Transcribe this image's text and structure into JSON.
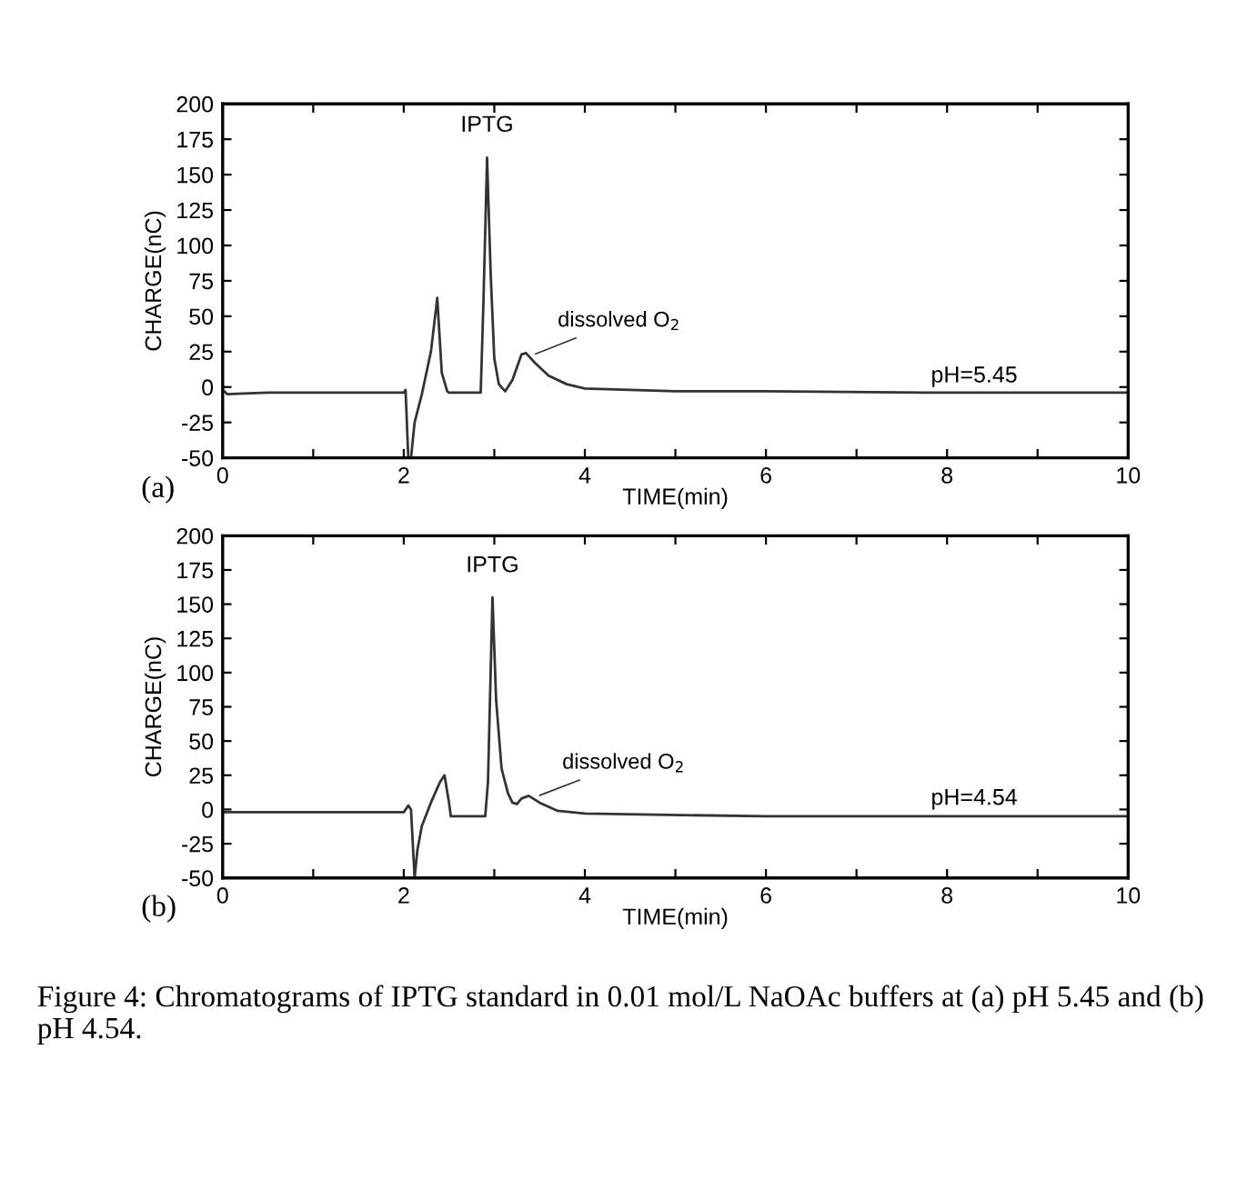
{
  "chart_data": [
    {
      "type": "line",
      "xlabel": "TIME(min)",
      "ylabel": "CHARGE(nC)",
      "xlim": [
        0,
        10
      ],
      "ylim": [
        -50,
        200
      ],
      "xticks": [
        0,
        {
          "value": 1,
          "label": null
        },
        2,
        {
          "value": 3,
          "label": null
        },
        4,
        {
          "value": 5,
          "label": null
        },
        6,
        {
          "value": 7,
          "label": null
        },
        8,
        {
          "value": 9,
          "label": null
        },
        10
      ],
      "yticks": [
        -50,
        -25,
        0,
        25,
        50,
        75,
        100,
        125,
        150,
        175,
        200
      ],
      "grid": false,
      "legend": false,
      "marker": "none",
      "line_style": "solid",
      "series": [
        {
          "color": "#333333",
          "x": [
            0,
            0.05,
            0.5,
            1.5,
            2.0,
            2.02,
            2.05,
            2.08,
            2.12,
            2.2,
            2.3,
            2.37,
            2.42,
            2.48,
            2.5,
            2.85,
            2.88,
            2.92,
            2.96,
            3.0,
            3.05,
            3.12,
            3.2,
            3.3,
            3.35,
            3.45,
            3.6,
            3.8,
            4.0,
            5,
            6,
            8,
            10
          ],
          "values": [
            -2,
            -5,
            -4,
            -4,
            -4,
            -2,
            -50,
            -50,
            -25,
            -5,
            25,
            63,
            10,
            -3,
            -4,
            -4,
            60,
            162,
            80,
            20,
            2,
            -3,
            5,
            23,
            24,
            17,
            8,
            2,
            -1,
            -3,
            -3,
            -4,
            -4
          ]
        }
      ],
      "annotations": [
        {
          "text": "IPTG",
          "x": 2.92,
          "y": 162
        },
        {
          "text": "dissolved O$_{2}$",
          "x": 3.4,
          "y": 22
        },
        "pH=5.45",
        "(a)"
      ]
    },
    {
      "type": "line",
      "xlabel": "TIME(min)",
      "ylabel": "CHARGE(nC)",
      "xlim": [
        0,
        10
      ],
      "ylim": [
        -50,
        200
      ],
      "xticks": [
        0,
        {
          "value": 1,
          "label": null
        },
        2,
        {
          "value": 3,
          "label": null
        },
        4,
        {
          "value": 5,
          "label": null
        },
        6,
        {
          "value": 7,
          "label": null
        },
        8,
        {
          "value": 9,
          "label": null
        },
        10
      ],
      "yticks": [
        -50,
        -25,
        0,
        25,
        50,
        75,
        100,
        125,
        150,
        175,
        200
      ],
      "grid": false,
      "legend": false,
      "marker": "none",
      "line_style": "solid",
      "series": [
        {
          "color": "#333333",
          "x": [
            0,
            1.5,
            2.0,
            2.05,
            2.08,
            2.12,
            2.15,
            2.2,
            2.3,
            2.4,
            2.45,
            2.5,
            2.52,
            2.9,
            2.93,
            2.98,
            3.02,
            3.08,
            3.15,
            3.2,
            3.25,
            3.3,
            3.38,
            3.5,
            3.7,
            4,
            6,
            8,
            10
          ],
          "values": [
            -2,
            -2,
            -2,
            3,
            0,
            -50,
            -30,
            -12,
            5,
            20,
            25,
            5,
            -5,
            -5,
            20,
            155,
            80,
            30,
            12,
            5,
            4,
            8,
            10,
            5,
            -1,
            -3,
            -5,
            -5,
            -5
          ]
        }
      ],
      "annotations": [
        {
          "text": "IPTG",
          "x": 2.98,
          "y": 155
        },
        {
          "text": "dissolved O$_{2}$",
          "x": 3.45,
          "y": 9
        },
        "pH=4.54",
        "(b)",
        "Figure 4: Chromatograms of IPTG standard in 0.01 mol/L NaOAc buffers at (a) pH 5.45 and (b) pH 4.54."
      ]
    }
  ]
}
